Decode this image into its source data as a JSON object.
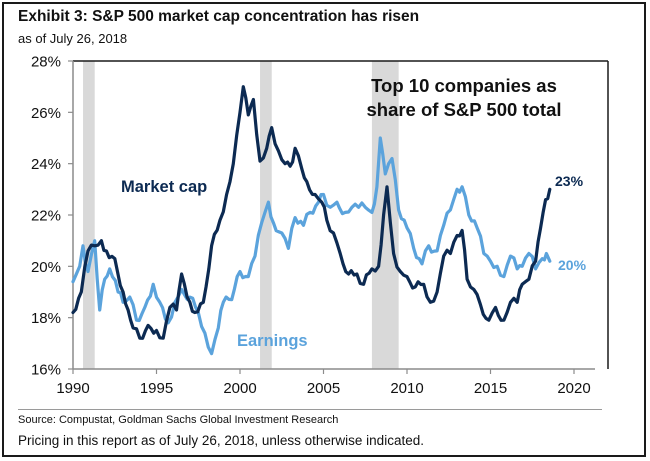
{
  "header": {
    "title": "Exhibit 3: S&P 500 market cap concentration has risen",
    "subtitle": "as of July 26, 2018"
  },
  "footer": {
    "source": "Source: Compustat, Goldman Sachs Global Investment Research",
    "note": "Pricing in this report as of July 26, 2018, unless otherwise indicated."
  },
  "colors": {
    "market_cap": "#0c2a52",
    "earnings": "#5ba3dc",
    "recession": "#d9d9d9",
    "axis": "#8c8c8c"
  },
  "chart_data": {
    "type": "line",
    "title": "Exhibit 3: S&P 500 market cap concentration has risen",
    "subtitle": "as of July 26, 2018",
    "xlabel": "",
    "ylabel": "",
    "xlim": [
      1990,
      2022
    ],
    "ylim": [
      16,
      28
    ],
    "x_ticks": [
      1990,
      1995,
      2000,
      2005,
      2010,
      2015,
      2020
    ],
    "x_tick_labels": [
      "1990",
      "1995",
      "2000",
      "2005",
      "2010",
      "2015",
      "2020"
    ],
    "y_ticks": [
      16,
      18,
      20,
      22,
      24,
      26,
      28
    ],
    "y_tick_labels": [
      "16%",
      "18%",
      "20%",
      "22%",
      "24%",
      "26%",
      "28%"
    ],
    "grid": false,
    "annotations": {
      "box_title": [
        "Top 10 companies  as",
        "share of S&P 500 total"
      ],
      "market_cap_label": "Market cap",
      "earnings_label": "Earnings",
      "market_cap_end_label": "23%",
      "earnings_end_label": "20%"
    },
    "recessions": [
      [
        1990.6,
        1991.3
      ],
      [
        2001.2,
        2001.9
      ],
      [
        2007.9,
        2009.5
      ]
    ],
    "series": [
      {
        "name": "Market cap",
        "x": [
          1990.0,
          1990.5,
          1990.9,
          1991.3,
          1991.7,
          1992.0,
          1992.5,
          1993.0,
          1993.3,
          1993.6,
          1994.0,
          1994.5,
          1995.0,
          1995.4,
          1995.8,
          1996.2,
          1996.5,
          1997.0,
          1997.3,
          1997.8,
          1998.3,
          1998.8,
          1999.2,
          1999.6,
          2000.0,
          2000.2,
          2000.5,
          2000.8,
          2001.2,
          2001.6,
          2001.9,
          2002.3,
          2002.7,
          2003.0,
          2003.3,
          2003.7,
          2004.0,
          2004.5,
          2004.9,
          2005.2,
          2005.6,
          2006.0,
          2006.5,
          2007.0,
          2007.4,
          2007.9,
          2008.3,
          2008.6,
          2008.8,
          2009.2,
          2009.6,
          2010.0,
          2010.5,
          2011.0,
          2011.4,
          2011.8,
          2012.2,
          2012.6,
          2013.0,
          2013.3,
          2013.6,
          2014.0,
          2014.4,
          2014.9,
          2015.3,
          2015.8,
          2016.2,
          2016.6,
          2016.9,
          2017.3,
          2017.7,
          2018.0,
          2018.3,
          2018.55
        ],
        "values": [
          18.2,
          19.0,
          20.6,
          20.8,
          21.0,
          20.6,
          20.3,
          19.0,
          18.3,
          17.6,
          17.2,
          17.7,
          17.5,
          17.2,
          18.4,
          18.3,
          19.7,
          18.6,
          18.2,
          18.6,
          20.8,
          21.8,
          22.8,
          24.0,
          26.0,
          27.0,
          25.9,
          26.5,
          24.1,
          24.6,
          25.4,
          24.5,
          24.0,
          23.9,
          24.6,
          23.8,
          23.3,
          22.8,
          22.5,
          21.8,
          21.3,
          20.5,
          19.7,
          19.7,
          19.3,
          19.9,
          20.0,
          22.0,
          23.1,
          20.5,
          19.8,
          19.6,
          19.2,
          19.3,
          18.6,
          19.0,
          20.4,
          20.5,
          21.2,
          21.4,
          19.5,
          19.1,
          18.5,
          17.9,
          18.4,
          17.9,
          18.6,
          18.6,
          19.3,
          19.5,
          20.2,
          21.5,
          22.6,
          23.0
        ]
      },
      {
        "name": "Earnings",
        "x": [
          1990.0,
          1990.4,
          1990.6,
          1990.9,
          1991.3,
          1991.6,
          1991.9,
          1992.2,
          1992.7,
          1993.0,
          1993.4,
          1993.8,
          1994.3,
          1994.8,
          1995.2,
          1995.7,
          1996.1,
          1996.5,
          1997.0,
          1997.5,
          1997.9,
          1998.3,
          1998.7,
          1999.0,
          1999.5,
          2000.0,
          2000.5,
          2000.9,
          2001.3,
          2001.7,
          2002.0,
          2002.5,
          2002.9,
          2003.3,
          2003.8,
          2004.2,
          2004.7,
          2005.0,
          2005.4,
          2005.8,
          2006.3,
          2006.7,
          2007.1,
          2007.5,
          2007.9,
          2008.2,
          2008.4,
          2008.7,
          2009.1,
          2009.5,
          2010.0,
          2010.4,
          2010.9,
          2011.3,
          2011.8,
          2012.2,
          2012.6,
          2013.0,
          2013.3,
          2013.7,
          2014.2,
          2014.6,
          2015.0,
          2015.4,
          2015.8,
          2016.2,
          2016.6,
          2016.9,
          2017.3,
          2017.7,
          2018.1,
          2018.35,
          2018.55
        ],
        "values": [
          19.4,
          20.0,
          20.8,
          19.8,
          21.0,
          18.3,
          19.5,
          19.9,
          19.0,
          18.6,
          18.8,
          17.9,
          18.4,
          19.3,
          18.6,
          17.8,
          18.6,
          19.1,
          18.8,
          18.2,
          17.4,
          16.6,
          17.6,
          18.6,
          18.7,
          19.8,
          19.6,
          20.4,
          21.7,
          22.5,
          21.7,
          21.3,
          20.7,
          21.9,
          21.6,
          22.1,
          22.5,
          22.8,
          22.3,
          22.5,
          22.1,
          22.3,
          22.3,
          22.3,
          22.1,
          23.1,
          25.0,
          23.6,
          24.2,
          22.2,
          21.5,
          20.7,
          20.1,
          20.8,
          20.6,
          21.6,
          22.2,
          23.0,
          23.1,
          22.0,
          21.5,
          20.5,
          20.2,
          20.0,
          19.6,
          20.4,
          19.9,
          20.0,
          20.5,
          19.9,
          20.3,
          20.5,
          20.2
        ]
      }
    ],
    "legend": "inline-labels"
  }
}
